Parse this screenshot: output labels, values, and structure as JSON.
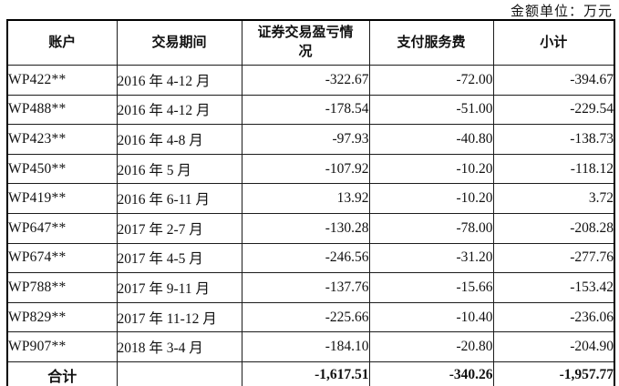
{
  "unit_caption": "金额单位：万元",
  "table": {
    "headers": [
      "账户",
      "交易期间",
      "证券交易盈亏情况",
      "支付服务费",
      "小计"
    ],
    "rows": [
      {
        "account": "WP422**",
        "period": "2016 年 4-12 月",
        "pnl": "-322.67",
        "fee": "-72.00",
        "subtotal": "-394.67"
      },
      {
        "account": "WP488**",
        "period": "2016 年 4-12 月",
        "pnl": "-178.54",
        "fee": "-51.00",
        "subtotal": "-229.54"
      },
      {
        "account": "WP423**",
        "period": "2016 年 4-8 月",
        "pnl": "-97.93",
        "fee": "-40.80",
        "subtotal": "-138.73"
      },
      {
        "account": "WP450**",
        "period": "2016 年 5 月",
        "pnl": "-107.92",
        "fee": "-10.20",
        "subtotal": "-118.12"
      },
      {
        "account": "WP419**",
        "period": "2016 年 6-11 月",
        "pnl": "13.92",
        "fee": "-10.20",
        "subtotal": "3.72"
      },
      {
        "account": "WP647**",
        "period": "2017 年 2-7 月",
        "pnl": "-130.28",
        "fee": "-78.00",
        "subtotal": "-208.28"
      },
      {
        "account": "WP674**",
        "period": "2017 年 4-5 月",
        "pnl": "-246.56",
        "fee": "-31.20",
        "subtotal": "-277.76"
      },
      {
        "account": "WP788**",
        "period": "2017 年 9-11 月",
        "pnl": "-137.76",
        "fee": "-15.66",
        "subtotal": "-153.42"
      },
      {
        "account": "WP829**",
        "period": "2017 年 11-12 月",
        "pnl": "-225.66",
        "fee": "-10.40",
        "subtotal": "-236.06"
      },
      {
        "account": "WP907**",
        "period": "2018 年 3-4 月",
        "pnl": "-184.10",
        "fee": "-20.80",
        "subtotal": "-204.90"
      }
    ],
    "total": {
      "label": "合计",
      "period": "",
      "pnl": "-1,617.51",
      "fee": "-340.26",
      "subtotal": "-1,957.77"
    }
  }
}
